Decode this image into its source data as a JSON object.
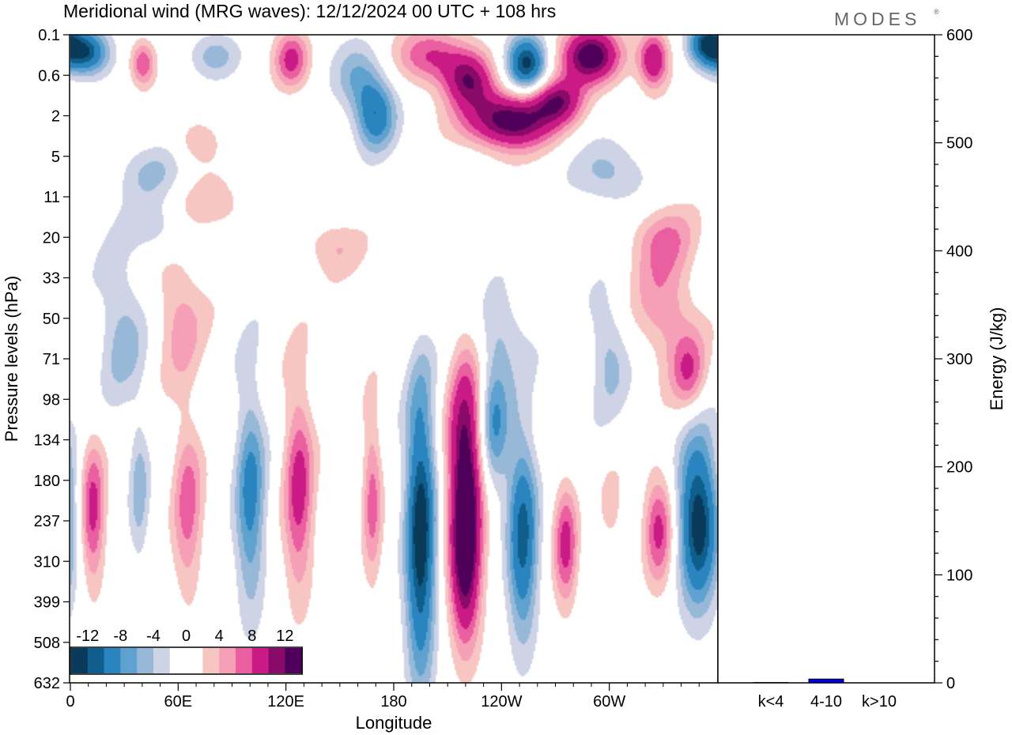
{
  "header": {
    "title": "Meridional wind (MRG waves):  12/12/2024  00 UTC  + 108 hrs",
    "brand": "MODES",
    "brand_mark": "®"
  },
  "colors": {
    "neg": [
      "#0a3a5a",
      "#0f5e8c",
      "#2a85bf",
      "#5fa2cf",
      "#98b8d8",
      "#cfd3e6"
    ],
    "pos": [
      "#f7c6c2",
      "#f6a0b8",
      "#ea5f9f",
      "#c91a85",
      "#8a0a6a",
      "#4e005a"
    ],
    "axis": "#000000",
    "bar": "#0000dd"
  },
  "chart_data": [
    {
      "type": "heatmap",
      "title": "Meridional wind (MRG waves):  12/12/2024  00 UTC  + 108 hrs",
      "xlabel": "Longitude",
      "ylabel": "Pressure levels (hPa)",
      "x_ticks": [
        "0",
        "60E",
        "120E",
        "180",
        "120W",
        "60W"
      ],
      "x_tick_degrees": [
        0,
        60,
        120,
        180,
        240,
        300
      ],
      "xlim": [
        0,
        360
      ],
      "y_ticks": [
        "0.1",
        "0.6",
        "2",
        "5",
        "11",
        "20",
        "33",
        "50",
        "71",
        "98",
        "134",
        "180",
        "237",
        "310",
        "399",
        "508",
        "632"
      ],
      "colorbar": {
        "labels": [
          "-12",
          "-8",
          "-4",
          "0",
          "4",
          "8",
          "12"
        ],
        "levels": [
          -14,
          -12,
          -10,
          -8,
          -6,
          -4,
          -2,
          2,
          4,
          6,
          8,
          10,
          12,
          14
        ]
      },
      "features": [
        {
          "lon": 12,
          "lev": 11.8,
          "v": 9,
          "wl": 5,
          "wy": 1.3
        },
        {
          "lon": 38,
          "lev": 11.2,
          "v": -5,
          "wl": 4,
          "wy": 1.3
        },
        {
          "lon": 65,
          "lev": 11.6,
          "v": 7,
          "wl": 6,
          "wy": 1.6
        },
        {
          "lon": 100,
          "lev": 11.4,
          "v": -9,
          "wl": 6,
          "wy": 2.0
        },
        {
          "lon": 127,
          "lev": 11.2,
          "v": 9,
          "wl": 6,
          "wy": 1.9
        },
        {
          "lon": 168,
          "lev": 11.4,
          "v": 7,
          "wl": 4,
          "wy": 1.5
        },
        {
          "lon": 195,
          "lev": 12.3,
          "v": -15,
          "wl": 6,
          "wy": 2.6
        },
        {
          "lon": 220,
          "lev": 10.8,
          "v": 15,
          "wl": 7,
          "wy": 2.0
        },
        {
          "lon": 220,
          "lev": 13.4,
          "v": 9,
          "wl": 6,
          "wy": 1.4
        },
        {
          "lon": 236,
          "lev": 9.6,
          "v": -8,
          "wl": 6,
          "wy": 1.2
        },
        {
          "lon": 252,
          "lev": 12.4,
          "v": -12,
          "wl": 6,
          "wy": 1.8
        },
        {
          "lon": 276,
          "lev": 12.6,
          "v": 9,
          "wl": 5,
          "wy": 1.1
        },
        {
          "lon": 300,
          "lev": 12.0,
          "v": 6,
          "wl": 7,
          "wy": 1.2
        },
        {
          "lon": 328,
          "lev": 12.2,
          "v": 9,
          "wl": 6,
          "wy": 1.0
        },
        {
          "lon": 350,
          "lev": 12.0,
          "v": -15,
          "wl": 8,
          "wy": 1.5
        },
        {
          "lon": 298,
          "lev": 12.6,
          "v": -4,
          "wl": 8,
          "wy": 1.8
        },
        {
          "lon": 28,
          "lev": 7.2,
          "v": -5,
          "wl": 10,
          "wy": 1.3
        },
        {
          "lon": 60,
          "lev": 6.8,
          "v": 5,
          "wl": 10,
          "wy": 1.2
        },
        {
          "lon": 332,
          "lev": 6.8,
          "v": 6,
          "wl": 12,
          "wy": 1.0
        },
        {
          "lon": 345,
          "lev": 8.4,
          "v": 7,
          "wl": 7,
          "wy": 0.7
        },
        {
          "lon": 300,
          "lev": 7.8,
          "v": -5,
          "wl": 8,
          "wy": 1.0
        },
        {
          "lon": 242,
          "lev": 7.4,
          "v": -4,
          "wl": 10,
          "wy": 0.8
        },
        {
          "lon": 80,
          "lev": 4.2,
          "v": 4,
          "wl": 14,
          "wy": 0.5
        },
        {
          "lon": 50,
          "lev": 4.8,
          "v": -4,
          "wl": 12,
          "wy": 0.5
        },
        {
          "lon": 145,
          "lev": 5.2,
          "v": 4,
          "wl": 12,
          "wy": 0.5
        },
        {
          "lon": 330,
          "lev": 5.0,
          "v": 5,
          "wl": 14,
          "wy": 0.6
        },
        {
          "lon": 8,
          "lev": 0.4,
          "v": -13,
          "wl": 9,
          "wy": 0.4
        },
        {
          "lon": 40,
          "lev": 0.7,
          "v": 8,
          "wl": 5,
          "wy": 0.4
        },
        {
          "lon": 80,
          "lev": 0.5,
          "v": -5,
          "wl": 10,
          "wy": 0.4
        },
        {
          "lon": 123,
          "lev": 0.6,
          "v": 9,
          "wl": 7,
          "wy": 0.5
        },
        {
          "lon": 170,
          "lev": 2.0,
          "v": -10,
          "wl": 8,
          "wy": 0.6
        },
        {
          "lon": 160,
          "lev": 1.0,
          "v": -6,
          "wl": 10,
          "wy": 0.6
        },
        {
          "lon": 200,
          "lev": 0.5,
          "v": 8,
          "wl": 14,
          "wy": 0.5
        },
        {
          "lon": 222,
          "lev": 1.1,
          "v": 11,
          "wl": 10,
          "wy": 0.5
        },
        {
          "lon": 254,
          "lev": 0.7,
          "v": -14,
          "wl": 8,
          "wy": 0.5
        },
        {
          "lon": 290,
          "lev": 0.5,
          "v": 15,
          "wl": 12,
          "wy": 0.5
        },
        {
          "lon": 245,
          "lev": 2.1,
          "v": 15,
          "wl": 18,
          "wy": 0.5
        },
        {
          "lon": 272,
          "lev": 1.6,
          "v": 10,
          "wl": 10,
          "wy": 0.4
        },
        {
          "lon": 325,
          "lev": 0.6,
          "v": 11,
          "wl": 6,
          "wy": 0.5
        },
        {
          "lon": 354,
          "lev": 0.2,
          "v": -12,
          "wl": 7,
          "wy": 0.4
        },
        {
          "lon": 300,
          "lev": 3.4,
          "v": -5,
          "wl": 14,
          "wy": 0.6
        },
        {
          "lon": 45,
          "lev": 3.4,
          "v": -4,
          "wl": 14,
          "wy": 0.5
        },
        {
          "lon": 70,
          "lev": 2.6,
          "v": 4,
          "wl": 8,
          "wy": 0.4
        }
      ]
    },
    {
      "type": "bar",
      "ylabel": "Energy (J/kg)",
      "categories": [
        "k<4",
        "4-10",
        "k>10"
      ],
      "values": [
        0.3,
        3.5,
        0
      ],
      "ylim": [
        0,
        600
      ],
      "y_ticks": [
        "0",
        "100",
        "200",
        "300",
        "400",
        "500",
        "600"
      ]
    }
  ]
}
